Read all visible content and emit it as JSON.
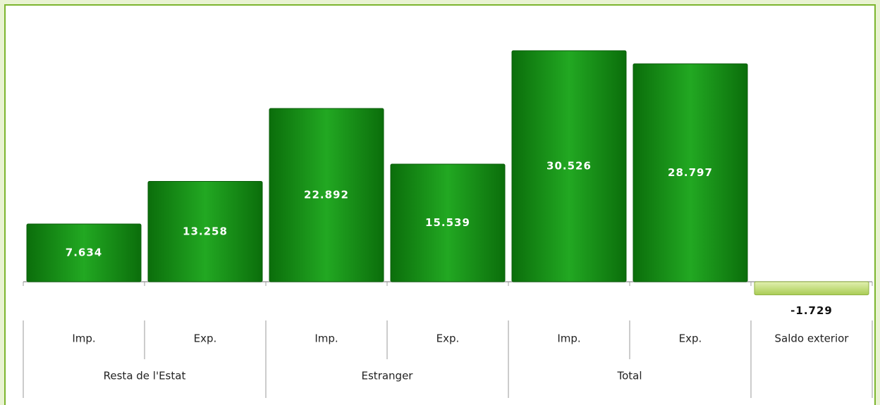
{
  "chart_data": {
    "type": "bar",
    "categories": [
      "Imp.",
      "Exp.",
      "Imp.",
      "Exp.",
      "Imp.",
      "Exp.",
      "Saldo exterior"
    ],
    "group_labels": [
      "Resta de l'Estat",
      "Resta de l'Estat",
      "Estranger",
      "Estranger",
      "Total",
      "Total",
      null
    ],
    "values": [
      7634,
      13258,
      22892,
      15539,
      30526,
      28797,
      -1729
    ],
    "value_labels": [
      "7.634",
      "13.258",
      "22.892",
      "15.539",
      "30.526",
      "28.797",
      "-1.729"
    ],
    "color": "#1a9a1a",
    "negative_color": "#c3de7a"
  }
}
